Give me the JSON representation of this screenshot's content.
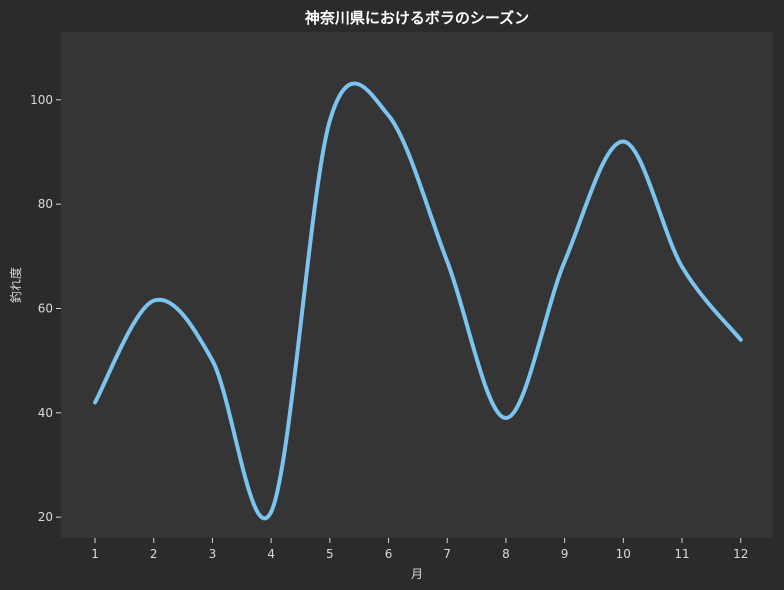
{
  "chart_data": {
    "type": "line",
    "title": "神奈川県におけるボラのシーズン",
    "xlabel": "月",
    "ylabel": "釣れ度",
    "x": [
      1,
      2,
      3,
      4,
      5,
      6,
      7,
      8,
      9,
      10,
      11,
      12
    ],
    "x_tick_labels": [
      "1",
      "2",
      "3",
      "4",
      "5",
      "6",
      "7",
      "8",
      "9",
      "10",
      "11",
      "12"
    ],
    "y_ticks": [
      20,
      40,
      60,
      80,
      100
    ],
    "y_tick_labels": [
      "20",
      "40",
      "60",
      "80",
      "100"
    ],
    "xlim": [
      0.42,
      12.55
    ],
    "ylim": [
      16,
      113
    ],
    "grid": false,
    "legend": "none",
    "series": [
      {
        "color": "#7cc4f0",
        "smooth": true,
        "values": [
          42,
          61.5,
          50,
          21,
          96,
          97,
          69,
          39,
          69,
          92,
          68,
          54
        ]
      }
    ],
    "colors": {
      "background": "#2b2b2b",
      "plot_background": "#353535",
      "text": "#d8d8d8",
      "title": "#ffffff"
    }
  }
}
